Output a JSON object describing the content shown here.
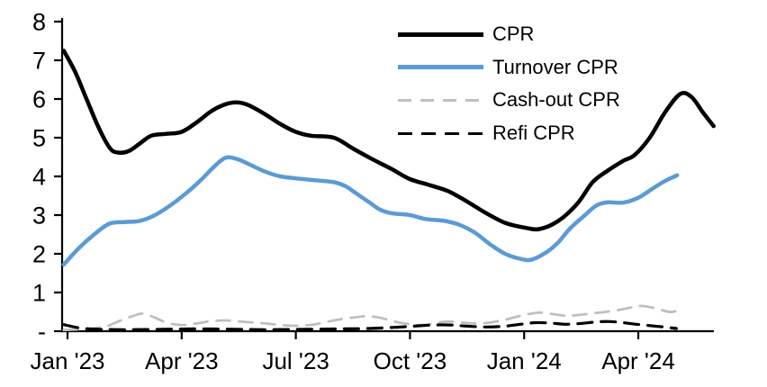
{
  "chart": {
    "background_color": "#ffffff",
    "axis_color": "#000000",
    "text_color": "#000000",
    "y_axis": {
      "tick_values": [
        0,
        1,
        2,
        3,
        4,
        5,
        6,
        7,
        8
      ],
      "tick_labels": [
        "-",
        "1",
        "2",
        "3",
        "4",
        "5",
        "6",
        "7",
        "8"
      ]
    },
    "x_axis": {
      "tick_months": [
        0,
        3,
        6,
        9,
        12,
        15
      ],
      "tick_labels": [
        "Jan '23",
        "Apr '23",
        "Jul '23",
        "Oct '23",
        "Jan '24",
        "Apr '24"
      ]
    }
  },
  "chart_data": {
    "type": "line",
    "title": "",
    "xlabel": "",
    "ylabel": "",
    "ylim": [
      0,
      8
    ],
    "xlim_months": [
      -0.15,
      17.0
    ],
    "x_unit": "months since Jan 2023",
    "grid": false,
    "legend_position": "top-right",
    "series": [
      {
        "name": "CPR",
        "color": "#000000",
        "style": "solid",
        "width": 4.5,
        "x": [
          -0.1,
          0.2,
          0.5,
          0.8,
          1.1,
          1.3,
          1.6,
          1.9,
          2.2,
          2.6,
          3.0,
          3.4,
          3.8,
          4.2,
          4.5,
          4.8,
          5.2,
          5.6,
          6.0,
          6.4,
          7.0,
          7.5,
          8.0,
          8.5,
          9.0,
          9.5,
          10.0,
          10.5,
          11.0,
          11.5,
          12.0,
          12.4,
          12.9,
          13.4,
          13.8,
          14.2,
          14.6,
          14.9,
          15.3,
          15.7,
          16.1,
          16.4,
          16.7,
          16.98
        ],
        "values": [
          7.25,
          6.7,
          6.0,
          5.3,
          4.75,
          4.62,
          4.65,
          4.85,
          5.05,
          5.1,
          5.15,
          5.4,
          5.7,
          5.88,
          5.91,
          5.82,
          5.6,
          5.35,
          5.15,
          5.05,
          5.0,
          4.72,
          4.45,
          4.2,
          3.93,
          3.78,
          3.62,
          3.35,
          3.05,
          2.8,
          2.68,
          2.64,
          2.85,
          3.3,
          3.85,
          4.15,
          4.4,
          4.55,
          5.0,
          5.65,
          6.13,
          6.05,
          5.65,
          5.3
        ]
      },
      {
        "name": "Turnover CPR",
        "color": "#5B9BD5",
        "style": "solid",
        "width": 4.5,
        "x": [
          -0.1,
          0.3,
          0.7,
          1.1,
          1.5,
          1.9,
          2.3,
          2.7,
          3.1,
          3.5,
          3.85,
          4.15,
          4.45,
          4.8,
          5.2,
          5.6,
          6.0,
          6.5,
          7.0,
          7.3,
          7.6,
          7.9,
          8.2,
          8.5,
          9.0,
          9.4,
          9.9,
          10.3,
          10.7,
          11.1,
          11.5,
          11.9,
          12.2,
          12.6,
          12.9,
          13.2,
          13.6,
          13.9,
          14.2,
          14.6,
          15.0,
          15.4,
          15.7,
          16.02
        ],
        "values": [
          1.72,
          2.15,
          2.5,
          2.78,
          2.82,
          2.85,
          3.0,
          3.25,
          3.55,
          3.9,
          4.25,
          4.48,
          4.45,
          4.3,
          4.12,
          4.0,
          3.95,
          3.9,
          3.85,
          3.75,
          3.55,
          3.35,
          3.15,
          3.05,
          3.0,
          2.9,
          2.85,
          2.75,
          2.55,
          2.25,
          2.0,
          1.87,
          1.85,
          2.05,
          2.3,
          2.65,
          3.0,
          3.25,
          3.33,
          3.32,
          3.45,
          3.7,
          3.88,
          4.03
        ]
      },
      {
        "name": "Cash-out CPR",
        "color": "#BFBFBF",
        "style": "dashed",
        "width": 2.8,
        "dash": [
          15,
          10
        ],
        "x": [
          -0.1,
          0.5,
          1.0,
          1.4,
          1.8,
          2.0,
          2.3,
          2.6,
          3.0,
          3.4,
          3.7,
          4.1,
          4.4,
          4.8,
          5.2,
          5.6,
          6.0,
          6.45,
          6.85,
          7.25,
          7.65,
          7.9,
          8.25,
          8.6,
          9.0,
          9.35,
          9.7,
          10.05,
          10.4,
          10.8,
          11.2,
          11.6,
          12.0,
          12.4,
          12.7,
          13.1,
          13.45,
          13.8,
          14.15,
          14.55,
          14.9,
          15.15,
          15.5,
          15.8,
          16.02
        ],
        "values": [
          0.03,
          0.06,
          0.12,
          0.28,
          0.42,
          0.45,
          0.35,
          0.22,
          0.16,
          0.2,
          0.25,
          0.28,
          0.26,
          0.23,
          0.2,
          0.16,
          0.14,
          0.17,
          0.25,
          0.32,
          0.37,
          0.39,
          0.34,
          0.25,
          0.18,
          0.16,
          0.22,
          0.25,
          0.22,
          0.2,
          0.24,
          0.32,
          0.42,
          0.48,
          0.45,
          0.4,
          0.42,
          0.46,
          0.5,
          0.56,
          0.63,
          0.65,
          0.58,
          0.5,
          0.52
        ]
      },
      {
        "name": "Refi CPR",
        "color": "#000000",
        "style": "dashed",
        "width": 3.2,
        "dash": [
          16,
          10
        ],
        "x": [
          -0.1,
          0.35,
          0.85,
          1.55,
          2.5,
          3.45,
          4.4,
          5.3,
          6.3,
          7.2,
          7.9,
          8.6,
          9.1,
          9.6,
          10.05,
          10.5,
          11.0,
          11.5,
          11.9,
          12.3,
          12.7,
          13.1,
          13.5,
          13.9,
          14.25,
          14.6,
          14.95,
          15.35,
          15.75,
          16.0
        ],
        "values": [
          0.17,
          0.08,
          0.05,
          0.04,
          0.05,
          0.06,
          0.05,
          0.04,
          0.05,
          0.06,
          0.07,
          0.1,
          0.13,
          0.16,
          0.16,
          0.13,
          0.11,
          0.13,
          0.18,
          0.22,
          0.21,
          0.18,
          0.2,
          0.24,
          0.25,
          0.22,
          0.18,
          0.14,
          0.1,
          0.07
        ]
      }
    ]
  }
}
